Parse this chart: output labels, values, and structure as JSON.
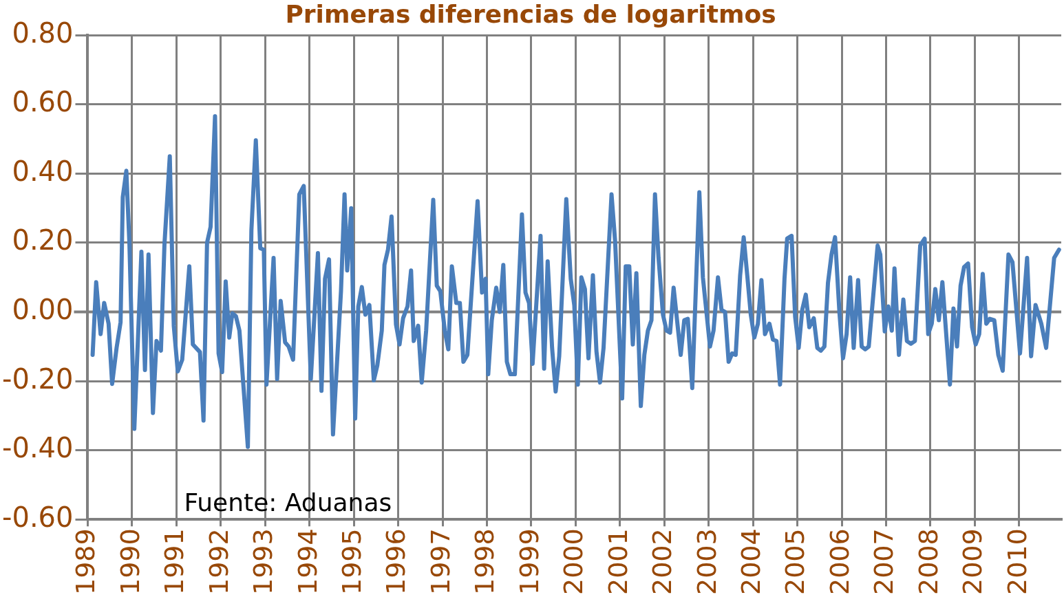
{
  "chart_data": {
    "type": "line",
    "title": "Primeras diferencias de logaritmos",
    "annotations": [
      "Fuente: Aduanas"
    ],
    "xlim": [
      1989,
      2010.95
    ],
    "xticks": [
      1989,
      1990,
      1991,
      1992,
      1993,
      1994,
      1995,
      1996,
      1997,
      1998,
      1999,
      2000,
      2001,
      2002,
      2003,
      2004,
      2005,
      2006,
      2007,
      2008,
      2009,
      2010
    ],
    "ylim": [
      -0.6,
      0.8
    ],
    "yticks": [
      {
        "value": -0.6,
        "label": "-0.60"
      },
      {
        "value": -0.4,
        "label": "-0.40"
      },
      {
        "value": -0.2,
        "label": "-0.20"
      },
      {
        "value": 0,
        "label": "0.00"
      },
      {
        "value": 0.2,
        "label": "0.20"
      },
      {
        "value": 0.4,
        "label": "0.40"
      },
      {
        "value": 0.6,
        "label": "0.60"
      },
      {
        "value": 0.8,
        "label": "0.80"
      }
    ],
    "grid": true,
    "legend": false,
    "marker": "none",
    "line_style": "solid",
    "ref_lines": [
      {
        "axis": "y",
        "value": 0,
        "color": "#808080"
      }
    ],
    "series": [
      {
        "color": "#4a7ebb",
        "x": [
          1989.11,
          1989.19,
          1989.29,
          1989.37,
          1989.47,
          1989.55,
          1989.65,
          1989.74,
          1989.79,
          1989.87,
          1989.94,
          1990.05,
          1990.13,
          1990.21,
          1990.29,
          1990.37,
          1990.47,
          1990.55,
          1990.65,
          1990.73,
          1990.85,
          1990.94,
          1991.03,
          1991.13,
          1991.29,
          1991.37,
          1991.53,
          1991.61,
          1991.69,
          1991.77,
          1991.87,
          1991.95,
          1992.03,
          1992.11,
          1992.19,
          1992.26,
          1992.34,
          1992.42,
          1992.61,
          1992.69,
          1992.79,
          1992.89,
          1992.97,
          1993.03,
          1993.19,
          1993.27,
          1993.35,
          1993.45,
          1993.53,
          1993.63,
          1993.77,
          1993.87,
          1994.03,
          1994.19,
          1994.27,
          1994.35,
          1994.44,
          1994.53,
          1994.71,
          1994.79,
          1994.85,
          1994.94,
          1995.03,
          1995.1,
          1995.18,
          1995.26,
          1995.35,
          1995.45,
          1995.53,
          1995.63,
          1995.69,
          1995.77,
          1995.85,
          1995.95,
          1996.03,
          1996.11,
          1996.21,
          1996.29,
          1996.35,
          1996.45,
          1996.53,
          1996.63,
          1996.79,
          1996.87,
          1996.95,
          1997.05,
          1997.13,
          1997.21,
          1997.31,
          1997.39,
          1997.47,
          1997.56,
          1997.79,
          1997.89,
          1997.97,
          1998.03,
          1998.11,
          1998.21,
          1998.29,
          1998.37,
          1998.45,
          1998.53,
          1998.63,
          1998.79,
          1998.87,
          1998.95,
          1999.03,
          1999.21,
          1999.29,
          1999.37,
          1999.47,
          1999.55,
          1999.63,
          1999.79,
          1999.89,
          1999.97,
          2000.05,
          2000.13,
          2000.21,
          2000.29,
          2000.39,
          2000.47,
          2000.55,
          2000.63,
          2000.81,
          2000.89,
          2001.05,
          2001.13,
          2001.21,
          2001.29,
          2001.37,
          2001.47,
          2001.55,
          2001.63,
          2001.71,
          2001.79,
          2001.87,
          2001.97,
          2002.05,
          2002.13,
          2002.21,
          2002.37,
          2002.45,
          2002.53,
          2002.63,
          2002.79,
          2002.87,
          2003.03,
          2003.11,
          2003.21,
          2003.29,
          2003.37,
          2003.45,
          2003.53,
          2003.61,
          2003.71,
          2003.79,
          2003.87,
          2003.95,
          2004.03,
          2004.11,
          2004.19,
          2004.27,
          2004.37,
          2004.45,
          2004.53,
          2004.61,
          2004.71,
          2004.77,
          2004.87,
          2004.95,
          2005.03,
          2005.11,
          2005.19,
          2005.27,
          2005.37,
          2005.45,
          2005.53,
          2005.61,
          2005.69,
          2005.77,
          2005.85,
          2005.95,
          2006.03,
          2006.11,
          2006.19,
          2006.27,
          2006.37,
          2006.45,
          2006.53,
          2006.61,
          2006.81,
          2006.87,
          2006.97,
          2007.05,
          2007.13,
          2007.19,
          2007.29,
          2007.39,
          2007.47,
          2007.56,
          2007.65,
          2007.77,
          2007.87,
          2007.95,
          2008.03,
          2008.11,
          2008.19,
          2008.27,
          2008.44,
          2008.52,
          2008.6,
          2008.68,
          2008.76,
          2008.85,
          2008.94,
          2009.02,
          2009.1,
          2009.18,
          2009.26,
          2009.34,
          2009.44,
          2009.53,
          2009.63,
          2009.76,
          2009.85,
          2010.02,
          2010.18,
          2010.27,
          2010.37,
          2010.5,
          2010.61,
          2010.79,
          2010.9
        ],
        "values": [
          -0.124,
          0.086,
          -0.064,
          0.026,
          -0.034,
          -0.208,
          -0.104,
          -0.03,
          0.332,
          0.408,
          0.196,
          -0.338,
          -0.084,
          0.174,
          -0.168,
          0.166,
          -0.292,
          -0.084,
          -0.112,
          0.196,
          0.45,
          -0.04,
          -0.172,
          -0.138,
          0.132,
          -0.094,
          -0.116,
          -0.314,
          0.2,
          0.246,
          0.566,
          -0.12,
          -0.174,
          0.088,
          -0.074,
          -0.004,
          -0.012,
          -0.054,
          -0.39,
          0.236,
          0.496,
          0.184,
          0.18,
          -0.21,
          0.156,
          -0.194,
          0.032,
          -0.088,
          -0.1,
          -0.138,
          0.34,
          0.364,
          -0.194,
          0.17,
          -0.228,
          0.096,
          0.152,
          -0.354,
          0.06,
          0.34,
          0.12,
          0.3,
          -0.308,
          0.016,
          0.072,
          -0.008,
          0.02,
          -0.198,
          -0.154,
          -0.054,
          0.136,
          0.18,
          0.276,
          -0.036,
          -0.094,
          -0.018,
          0.016,
          0.12,
          -0.084,
          -0.04,
          -0.204,
          -0.054,
          0.324,
          0.076,
          0.06,
          -0.054,
          -0.108,
          0.132,
          0.026,
          0.026,
          -0.144,
          -0.124,
          0.32,
          0.056,
          0.096,
          -0.18,
          -0.024,
          0.07,
          0,
          0.136,
          -0.144,
          -0.18,
          -0.18,
          0.282,
          0.056,
          0.026,
          -0.15,
          0.22,
          -0.164,
          0.146,
          -0.104,
          -0.23,
          -0.128,
          0.326,
          0.096,
          0.02,
          -0.21,
          0.1,
          0.066,
          -0.134,
          0.106,
          -0.114,
          -0.204,
          -0.104,
          0.34,
          0.206,
          -0.25,
          0.132,
          0.132,
          -0.094,
          0.112,
          -0.272,
          -0.124,
          -0.054,
          -0.024,
          0.34,
          0.156,
          -0.008,
          -0.054,
          -0.06,
          0.07,
          -0.124,
          -0.024,
          -0.02,
          -0.22,
          0.346,
          0.1,
          -0.1,
          -0.054,
          0.1,
          0.006,
          0,
          -0.144,
          -0.12,
          -0.124,
          0.106,
          0.216,
          0.106,
          -0.008,
          -0.074,
          -0.034,
          0.092,
          -0.064,
          -0.034,
          -0.08,
          -0.084,
          -0.21,
          0.096,
          0.212,
          0.22,
          -0.014,
          -0.104,
          0.006,
          0.05,
          -0.044,
          -0.018,
          -0.104,
          -0.112,
          -0.1,
          0.084,
          0.166,
          0.216,
          -0.004,
          -0.134,
          -0.064,
          0.1,
          -0.104,
          0.092,
          -0.1,
          -0.108,
          -0.1,
          0.192,
          0.166,
          -0.056,
          0.016,
          -0.054,
          0.126,
          -0.124,
          0.036,
          -0.084,
          -0.092,
          -0.084,
          0.192,
          0.212,
          -0.064,
          -0.034,
          0.066,
          -0.024,
          0.086,
          -0.21,
          0.01,
          -0.1,
          0.076,
          0.13,
          0.14,
          -0.044,
          -0.094,
          -0.064,
          0.11,
          -0.034,
          -0.02,
          -0.024,
          -0.124,
          -0.17,
          0.166,
          0.144,
          -0.12,
          0.156,
          -0.128,
          0.02,
          -0.034,
          -0.104,
          0.156,
          0.18
        ]
      }
    ]
  }
}
